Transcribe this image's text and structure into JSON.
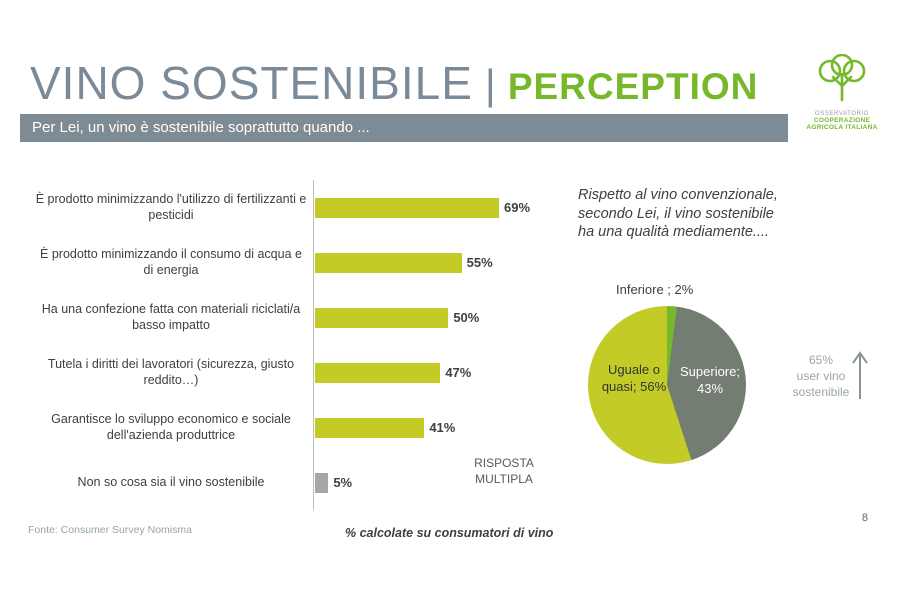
{
  "slide": {
    "title": "VINO SOSTENIBILE",
    "separator": "|",
    "accent": "PERCEPTION",
    "banner": "Per Lei, un vino è sostenibile soprattutto quando ...",
    "logo": {
      "line1": "OSSERVATORIO",
      "line2": "COOPERAZIONE",
      "line3": "AGRICOLA ITALIANA"
    },
    "footer": {
      "source": "Fonte: Consumer Survey Nomisma",
      "note": "% calcolate su consumatori di vino",
      "page": "8"
    }
  },
  "colors": {
    "accent_green": "#76b82a",
    "citron": "#c3cc27",
    "slate_title": "#7b8a99",
    "banner_gray": "#7e8a94",
    "pie_gray": "#747d72",
    "neutral_bar_gray": "#a6a6a6"
  },
  "chart_data": [
    {
      "type": "bar",
      "orientation": "horizontal",
      "note": "RISPOSTA MULTIPLA",
      "categories": [
        "È prodotto minimizzando l'utilizzo di fertilizzanti e pesticidi",
        "È prodotto minimizzando il consumo di acqua e di energia",
        "Ha una confezione fatta con materiali riciclati/a basso impatto",
        "Tutela i diritti dei lavoratori (sicurezza, giusto reddito…)",
        "Garantisce lo sviluppo economico e sociale dell'azienda produttrice",
        "Non so cosa sia il vino sostenibile"
      ],
      "values": [
        69,
        55,
        50,
        47,
        41,
        5
      ],
      "unit": "%",
      "colors": [
        "#c3cc27",
        "#c3cc27",
        "#c3cc27",
        "#c3cc27",
        "#c3cc27",
        "#a6a6a6"
      ],
      "xlim": [
        0,
        75
      ],
      "grid": false,
      "legend_position": "none"
    },
    {
      "type": "pie",
      "title": "Rispetto al vino convenzionale, secondo Lei, il vino sostenibile ha una qualità mediamente....",
      "slices": [
        {
          "label": "Inferiore",
          "value": 2,
          "color": "#76b82a",
          "display": "Inferiore ; 2%"
        },
        {
          "label": "Superiore",
          "value": 43,
          "color": "#747d72",
          "display": "Superiore; 43%"
        },
        {
          "label": "Uguale o quasi",
          "value": 56,
          "color": "#c3cc27",
          "display": "Uguale o quasi; 56%"
        }
      ],
      "start_angle_deg": 0,
      "annotation": "65% user vino sostenibile",
      "annotation_lines": [
        "65%",
        "user vino",
        "sostenibile"
      ],
      "legend_position": "none"
    }
  ]
}
